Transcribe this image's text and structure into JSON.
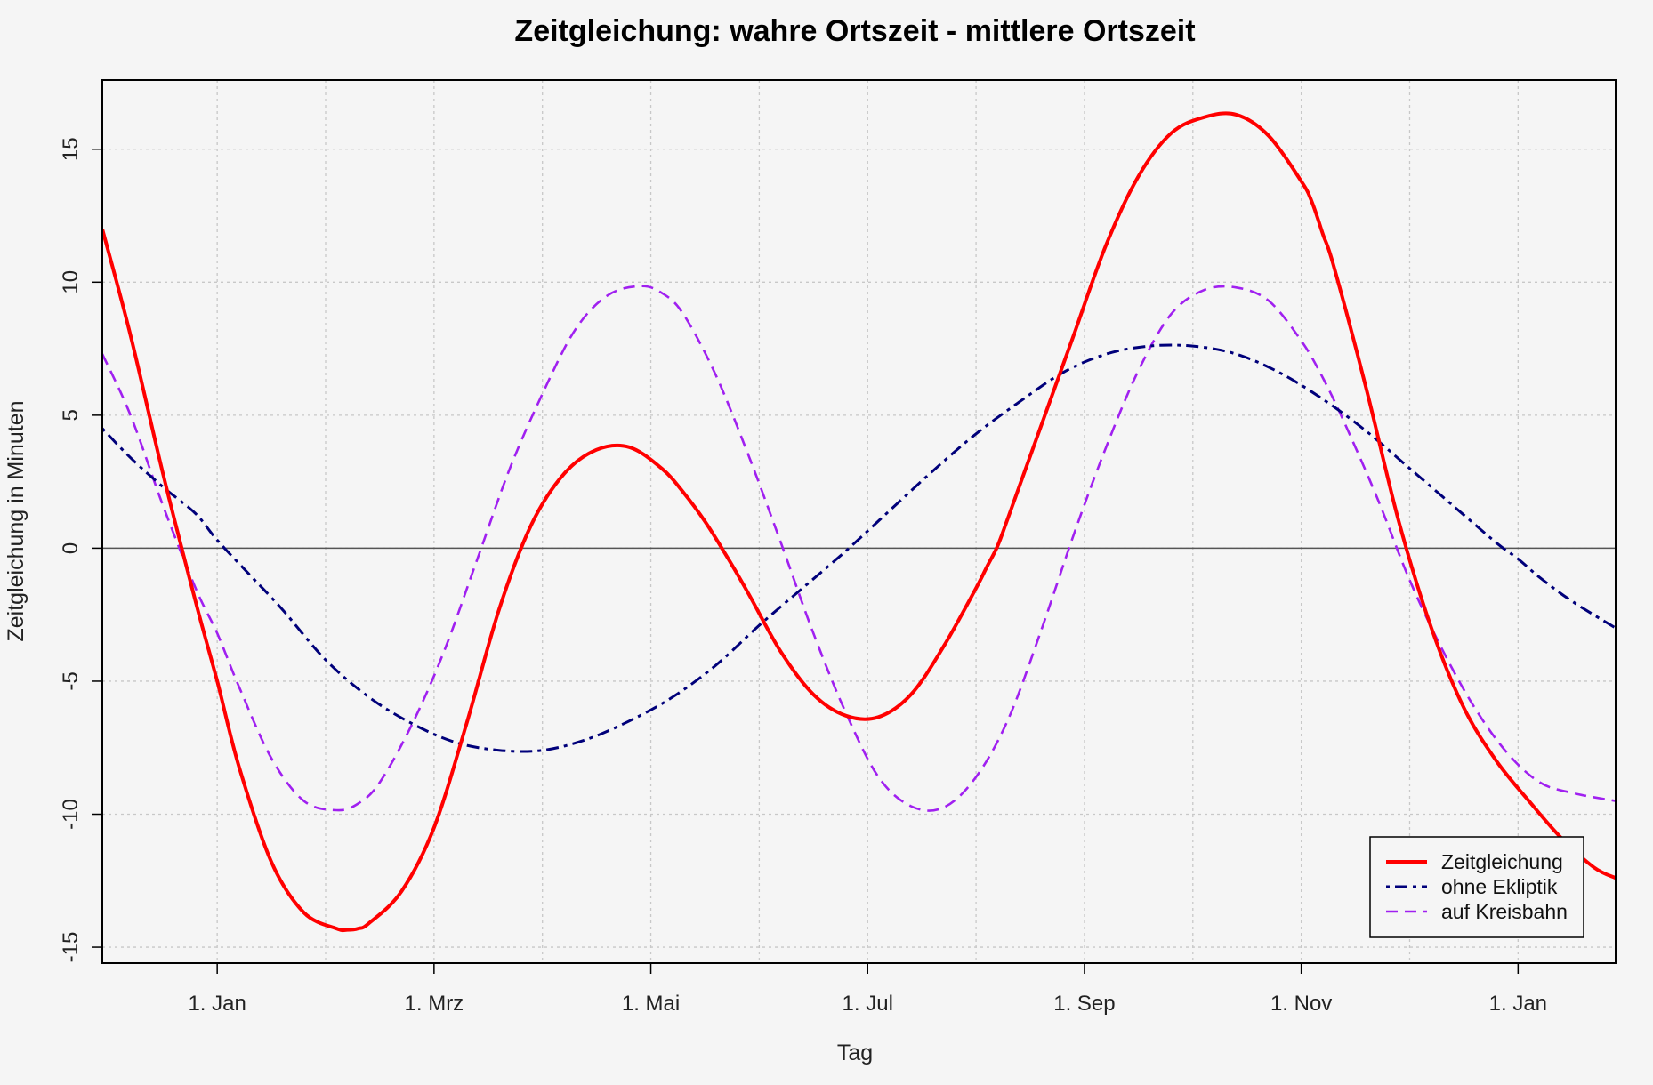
{
  "chart_data": {
    "type": "line",
    "title": "Zeitgleichung: wahre Ortszeit - mittlere Ortszeit",
    "xlabel": "Tag",
    "ylabel": "Zeitgleichung in Minuten",
    "x_unit": "days since 1. Jan (first year)",
    "xlim": [
      -53,
      645
    ],
    "ylim": [
      -15.6,
      17.6
    ],
    "x_ticks": [
      {
        "day": 0,
        "label": "1. Jan"
      },
      {
        "day": 100,
        "label": "1. Mrz"
      },
      {
        "day": 200,
        "label": "1. Mai"
      },
      {
        "day": 300,
        "label": "1. Jul"
      },
      {
        "day": 400,
        "label": "1. Sep"
      },
      {
        "day": 500,
        "label": "1. Nov"
      },
      {
        "day": 600,
        "label": "1. Jan"
      }
    ],
    "y_ticks": [
      {
        "value": -15,
        "label": "-15"
      },
      {
        "value": -10,
        "label": "-10"
      },
      {
        "value": -5,
        "label": "-5"
      },
      {
        "value": 0,
        "label": "0"
      },
      {
        "value": 5,
        "label": "5"
      },
      {
        "value": 10,
        "label": "10"
      },
      {
        "value": 15,
        "label": "15"
      }
    ],
    "grid": true,
    "x_grid": [
      0,
      50,
      100,
      150,
      200,
      250,
      300,
      350,
      400,
      450,
      500,
      550,
      600
    ],
    "legend_position": "bottom-right",
    "series": [
      {
        "name": "Zeitgleichung",
        "color": "#ff0000",
        "dash": "solid",
        "x": [
          -53,
          -40,
          -25,
          -10,
          0,
          10,
          25,
          40,
          55,
          60,
          65,
          70,
          85,
          100,
          115,
          130,
          145,
          160,
          175,
          190,
          205,
          215,
          225,
          235,
          245,
          260,
          275,
          290,
          305,
          320,
          335,
          350,
          355,
          360,
          365,
          380,
          395,
          410,
          425,
          440,
          455,
          470,
          485,
          500,
          505,
          510,
          515,
          530,
          545,
          560,
          575,
          590,
          605,
          620,
          635,
          645
        ],
        "y": [
          12.0,
          8.0,
          2.8,
          -2.0,
          -5.0,
          -8.2,
          -11.8,
          -13.7,
          -14.3,
          -14.35,
          -14.3,
          -14.1,
          -12.9,
          -10.5,
          -6.6,
          -2.3,
          0.9,
          2.8,
          3.7,
          3.8,
          3.0,
          2.1,
          1.0,
          -0.3,
          -1.7,
          -3.9,
          -5.5,
          -6.3,
          -6.35,
          -5.5,
          -3.7,
          -1.5,
          -0.7,
          0.1,
          1.2,
          4.6,
          8.0,
          11.4,
          14.0,
          15.6,
          16.2,
          16.3,
          15.5,
          13.8,
          13.0,
          11.8,
          10.6,
          6.0,
          1.0,
          -3.0,
          -6.0,
          -8.0,
          -9.5,
          -10.9,
          -12.0,
          -12.4
        ]
      },
      {
        "name": "ohne Ekliptik",
        "color": "#00007a",
        "dash": "dashdot",
        "x": [
          -53,
          -40,
          -25,
          -10,
          0,
          15,
          30,
          50,
          70,
          90,
          110,
          130,
          150,
          170,
          190,
          210,
          230,
          250,
          270,
          290,
          310,
          330,
          350,
          370,
          390,
          410,
          430,
          450,
          470,
          490,
          510,
          530,
          550,
          570,
          590,
          600,
          610,
          625,
          645
        ],
        "y": [
          4.5,
          3.4,
          2.3,
          1.3,
          0.3,
          -1.0,
          -2.3,
          -4.2,
          -5.6,
          -6.6,
          -7.3,
          -7.6,
          -7.6,
          -7.2,
          -6.5,
          -5.6,
          -4.4,
          -2.9,
          -1.5,
          -0.1,
          1.4,
          2.9,
          4.3,
          5.5,
          6.6,
          7.3,
          7.6,
          7.6,
          7.3,
          6.6,
          5.6,
          4.4,
          3.0,
          1.6,
          0.2,
          -0.4,
          -1.1,
          -2.0,
          -3.0
        ]
      },
      {
        "name": "auf Kreisbahn",
        "color": "#a020f0",
        "dash": "dashed",
        "x": [
          -53,
          -40,
          -25,
          -10,
          0,
          10,
          25,
          40,
          55,
          65,
          75,
          90,
          105,
          120,
          135,
          150,
          165,
          180,
          195,
          205,
          215,
          230,
          245,
          260,
          275,
          290,
          305,
          320,
          335,
          350,
          365,
          380,
          395,
          410,
          425,
          440,
          455,
          470,
          485,
          500,
          510,
          520,
          535,
          550,
          565,
          580,
          595,
          610,
          625,
          645
        ],
        "y": [
          7.3,
          5.0,
          1.6,
          -1.5,
          -3.2,
          -5.2,
          -7.9,
          -9.5,
          -9.85,
          -9.6,
          -8.8,
          -6.6,
          -3.8,
          -0.4,
          3.0,
          5.8,
          8.2,
          9.5,
          9.85,
          9.6,
          8.8,
          6.5,
          3.5,
          0.2,
          -3.2,
          -6.2,
          -8.6,
          -9.7,
          -9.75,
          -8.6,
          -6.4,
          -3.1,
          0.5,
          3.8,
          6.7,
          8.8,
          9.7,
          9.8,
          9.3,
          7.8,
          6.4,
          4.7,
          1.9,
          -1.2,
          -3.8,
          -6.0,
          -7.7,
          -8.8,
          -9.2,
          -9.5
        ]
      }
    ]
  }
}
